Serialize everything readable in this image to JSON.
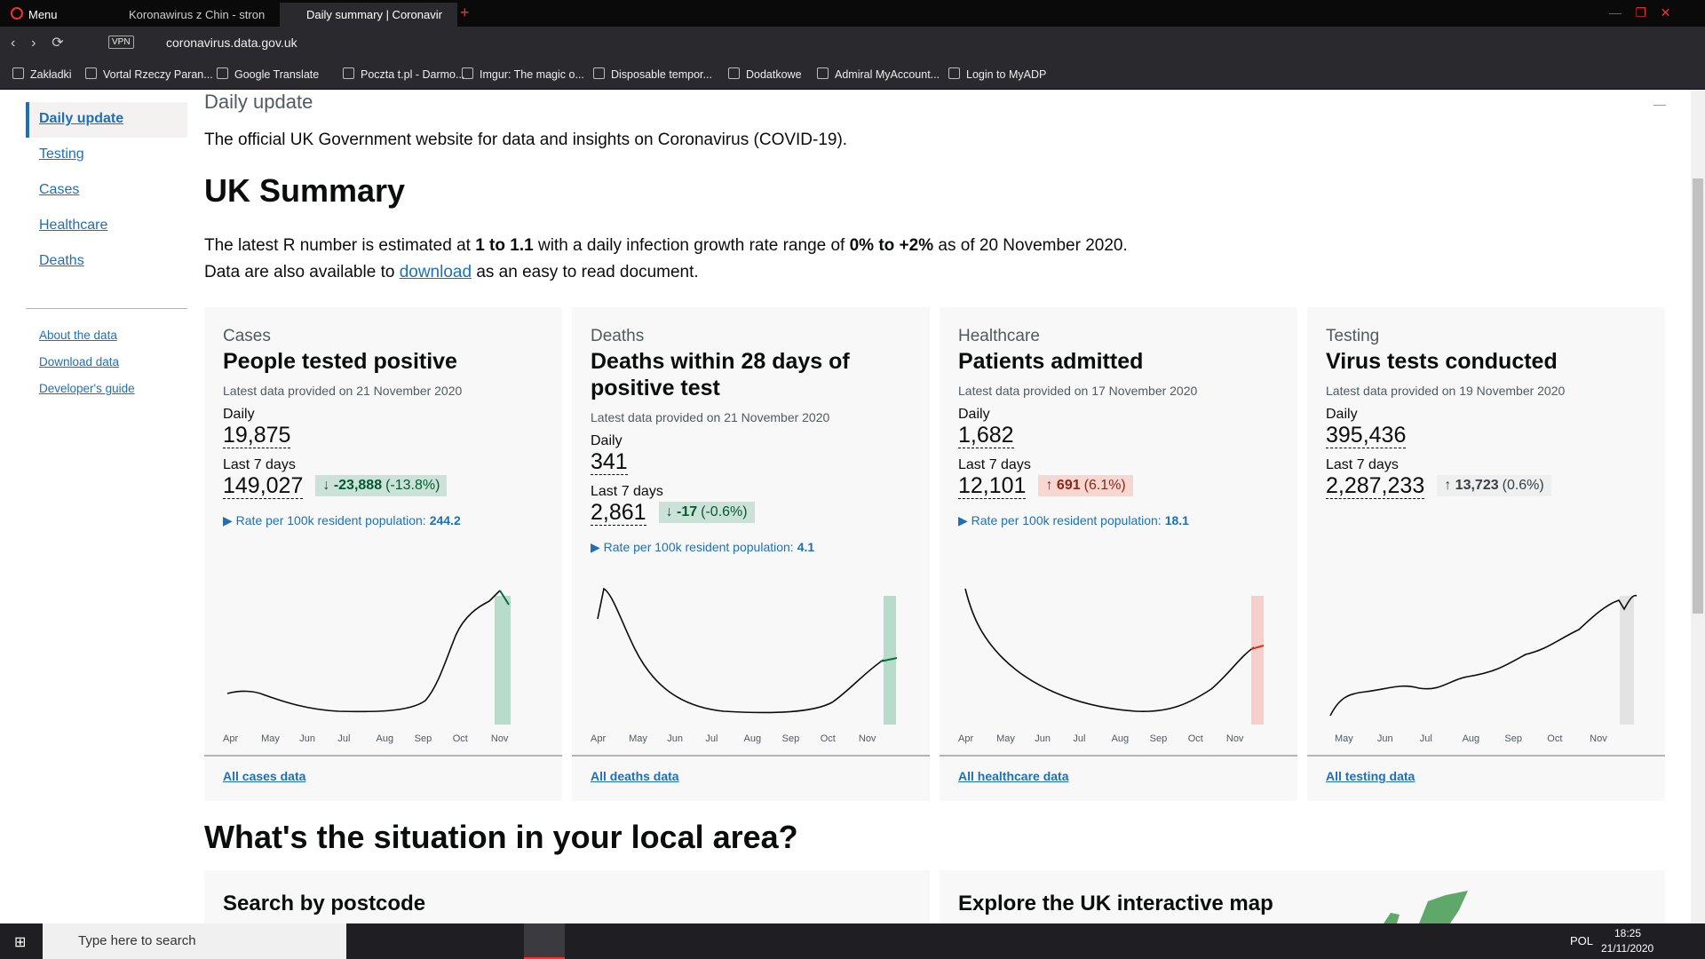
{
  "browser": {
    "menu": "Menu",
    "tabs": [
      "Koronawirus z Chin - stron",
      "Daily summary | Coronavir"
    ],
    "vpn": "VPN",
    "url": "coronavirus.data.gov.uk",
    "bookmarks": [
      "Zakładki",
      "Vortal Rzeczy Paran...",
      "Google Translate",
      "Poczta t.pl - Darmo...",
      "Imgur: The magic o...",
      "Disposable tempor...",
      "Dodatkowe",
      "Admiral MyAccount...",
      "Login to MyADP"
    ]
  },
  "sidebar": {
    "nav": [
      "Daily update",
      "Testing",
      "Cases",
      "Healthcare",
      "Deaths"
    ],
    "links": [
      "About the data",
      "Download data",
      "Developer's guide"
    ]
  },
  "page": {
    "heading": "Daily update",
    "intro": "The official UK Government website for data and insights on Coronavirus (COVID-19).",
    "title": "UK Summary",
    "r_line": [
      "The latest R number is estimated at",
      "1 to 1.1",
      "with a daily infection growth rate range of",
      "0% to +2%",
      "as of 20 November 2020."
    ],
    "download_line": [
      "Data are also available to",
      "download",
      "as an easy to read document."
    ]
  },
  "cards": [
    {
      "category": "Cases",
      "title": "People tested positive",
      "updated": "Latest data provided on 21 November 2020",
      "daily_label": "Daily",
      "daily": "19,875",
      "week_label": "Last 7 days",
      "week": "149,027",
      "change": "-23,888",
      "change_pct": "(-13.8%)",
      "rate_label": "Rate per 100k resident population:",
      "rate": "244.2",
      "months": [
        "Apr",
        "May",
        "Jun",
        "Jul",
        "Aug",
        "Sep",
        "Oct",
        "Nov"
      ],
      "link": "All cases data"
    },
    {
      "category": "Deaths",
      "title": "Deaths within 28 days of positive test",
      "updated": "Latest data provided on 21 November 2020",
      "daily_label": "Daily",
      "daily": "341",
      "week_label": "Last 7 days",
      "week": "2,861",
      "change": "-17",
      "change_pct": "(-0.6%)",
      "rate_label": "Rate per 100k resident population:",
      "rate": "4.1",
      "months": [
        "Apr",
        "May",
        "Jun",
        "Jul",
        "Aug",
        "Sep",
        "Oct",
        "Nov"
      ],
      "link": "All deaths data"
    },
    {
      "category": "Healthcare",
      "title": "Patients admitted",
      "updated": "Latest data provided on 17 November 2020",
      "daily_label": "Daily",
      "daily": "1,682",
      "week_label": "Last 7 days",
      "week": "12,101",
      "change": "691",
      "change_pct": "(6.1%)",
      "rate_label": "Rate per 100k resident population:",
      "rate": "18.1",
      "months": [
        "Apr",
        "May",
        "Jun",
        "Jul",
        "Aug",
        "Sep",
        "Oct",
        "Nov"
      ],
      "link": "All healthcare data"
    },
    {
      "category": "Testing",
      "title": "Virus tests conducted",
      "updated": "Latest data provided on 19 November 2020",
      "daily_label": "Daily",
      "daily": "395,436",
      "week_label": "Last 7 days",
      "week": "2,287,233",
      "change": "13,723",
      "change_pct": "(0.6%)",
      "months": [
        "May",
        "Jun",
        "Jul",
        "Aug",
        "Sep",
        "Oct",
        "Nov"
      ],
      "link": "All testing data"
    }
  ],
  "local": {
    "title": "What's the situation in your local area?",
    "postcode": "Search by postcode",
    "map": "Explore the UK interactive map"
  },
  "taskbar": {
    "search": "Type here to search",
    "lang": "POL",
    "time": "18:25",
    "date": "21/11/2020"
  }
}
